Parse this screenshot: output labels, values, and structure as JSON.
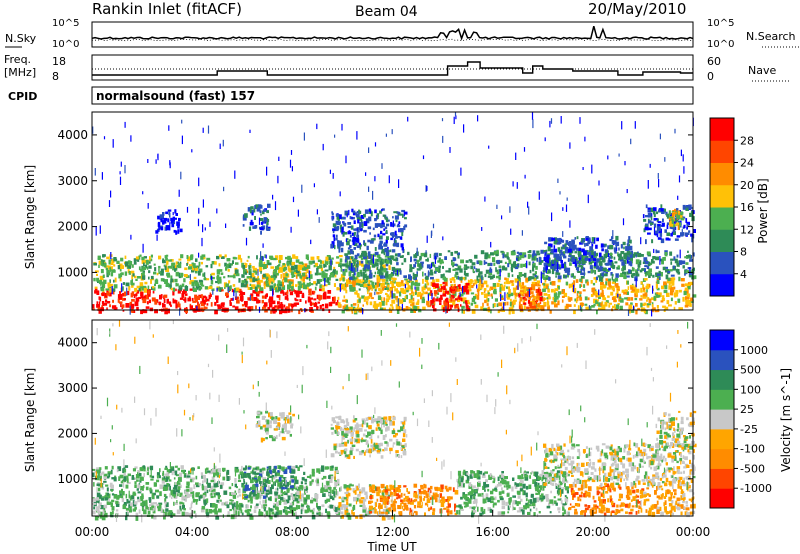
{
  "header": {
    "site": "Rankin Inlet (fitACF)",
    "beam": "Beam 04",
    "date": "20/May/2010"
  },
  "noise_panel": {
    "left_label": "N.Sky",
    "right_label": "N.Search",
    "left_ticks": [
      "10^5",
      "10^0"
    ],
    "right_ticks": [
      "10^5",
      "10^0"
    ]
  },
  "freq_panel": {
    "left_label_line1": "Freq.",
    "left_label_line2": "[MHz]",
    "right_label": "Nave",
    "left_ticks": [
      "18",
      "8"
    ],
    "right_ticks": [
      "60",
      "0"
    ]
  },
  "cpid_panel": {
    "label": "CPID",
    "text": "normalsound (fast) 157"
  },
  "chart_data": [
    {
      "type": "heatmap",
      "name": "power-panel",
      "ylabel": "Slant Range [km]",
      "yticks": [
        1000,
        2000,
        3000,
        4000
      ],
      "ylim": [
        180,
        4500
      ],
      "xlim": [
        0,
        24
      ],
      "colorbar_label": "Power [dB]",
      "colorbar_ticks": [
        "28",
        "24",
        "20",
        "16",
        "12",
        "8",
        "4"
      ],
      "colors": [
        "#0000ff",
        "#2a52be",
        "#2e8b57",
        "#4caf50",
        "#ffc107",
        "#ff8c00",
        "#ff4500",
        "#ff0000"
      ],
      "regions": [
        {
          "t0": 0.0,
          "t1": 9.8,
          "r0": 180,
          "r1": 650,
          "level": 7
        },
        {
          "t0": 6.0,
          "t1": 8.5,
          "r0": 700,
          "r1": 1200,
          "level": 4
        },
        {
          "t0": 0.0,
          "t1": 12.0,
          "r0": 650,
          "r1": 1400,
          "level": 3
        },
        {
          "t0": 9.8,
          "t1": 24.0,
          "r0": 180,
          "r1": 900,
          "level": 4
        },
        {
          "t0": 13.5,
          "t1": 15.0,
          "r0": 200,
          "r1": 800,
          "level": 7
        },
        {
          "t0": 17.0,
          "t1": 18.0,
          "r0": 200,
          "r1": 700,
          "level": 6
        },
        {
          "t0": 10.0,
          "t1": 24.0,
          "r0": 900,
          "r1": 1500,
          "level": 2
        },
        {
          "t0": 18.0,
          "t1": 21.5,
          "r0": 1100,
          "r1": 1800,
          "level": 1
        },
        {
          "t0": 22.0,
          "t1": 24.0,
          "r0": 1700,
          "r1": 2500,
          "level": 1
        },
        {
          "t0": 23.0,
          "t1": 23.5,
          "r0": 2000,
          "r1": 2400,
          "level": 4
        },
        {
          "t0": 9.5,
          "t1": 12.5,
          "r0": 1500,
          "r1": 2400,
          "level": 1
        },
        {
          "t0": 2.5,
          "t1": 3.5,
          "r0": 1900,
          "r1": 2400,
          "level": 0
        },
        {
          "t0": 6.0,
          "t1": 7.0,
          "r0": 1900,
          "r1": 2500,
          "level": 1
        },
        {
          "t0": 0.0,
          "t1": 24.0,
          "r0": 180,
          "r1": 4500,
          "level": 0,
          "sparse": true
        }
      ]
    },
    {
      "type": "heatmap",
      "name": "velocity-panel",
      "ylabel": "Slant Range [km]",
      "yticks": [
        1000,
        2000,
        3000,
        4000
      ],
      "ylim": [
        180,
        4500
      ],
      "xlim": [
        0,
        24
      ],
      "xticks": [
        "00:00",
        "04:00",
        "08:00",
        "12:00",
        "16:00",
        "20:00",
        "00:00"
      ],
      "xlabel": "Time UT",
      "colorbar_label": "Velocity [m s^-1]",
      "colorbar_ticks": [
        "1000",
        "500",
        "100",
        "25",
        "-25",
        "-100",
        "-500",
        "-1000"
      ],
      "colors": [
        "#ff0000",
        "#ff4500",
        "#ff8c00",
        "#ffa500",
        "#c8c8c8",
        "#4caf50",
        "#2e8b57",
        "#2a52be",
        "#0000ff"
      ],
      "regions": [
        {
          "t0": 0.0,
          "t1": 9.8,
          "r0": 180,
          "r1": 1300,
          "level": 5
        },
        {
          "t0": 6.0,
          "t1": 8.0,
          "r0": 600,
          "r1": 1300,
          "level": 6
        },
        {
          "t0": 9.8,
          "t1": 12.0,
          "r0": 180,
          "r1": 900,
          "level": 4
        },
        {
          "t0": 11.0,
          "t1": 14.5,
          "r0": 250,
          "r1": 900,
          "level": 2
        },
        {
          "t0": 14.5,
          "t1": 19.0,
          "r0": 250,
          "r1": 1200,
          "level": 5
        },
        {
          "t0": 19.0,
          "t1": 22.0,
          "r0": 250,
          "r1": 900,
          "level": 2
        },
        {
          "t0": 22.0,
          "t1": 24.0,
          "r0": 250,
          "r1": 900,
          "level": 3
        },
        {
          "t0": 18.0,
          "t1": 24.0,
          "r0": 900,
          "r1": 1800,
          "level": 4
        },
        {
          "t0": 22.5,
          "t1": 24.0,
          "r0": 1700,
          "r1": 2500,
          "level": 4
        },
        {
          "t0": 9.5,
          "t1": 12.5,
          "r0": 1500,
          "r1": 2400,
          "level": 4
        },
        {
          "t0": 6.5,
          "t1": 8.0,
          "r0": 1900,
          "r1": 2500,
          "level": 4
        },
        {
          "t0": 0.0,
          "t1": 24.0,
          "r0": 180,
          "r1": 4500,
          "level": 4,
          "sparse": true
        }
      ]
    }
  ]
}
